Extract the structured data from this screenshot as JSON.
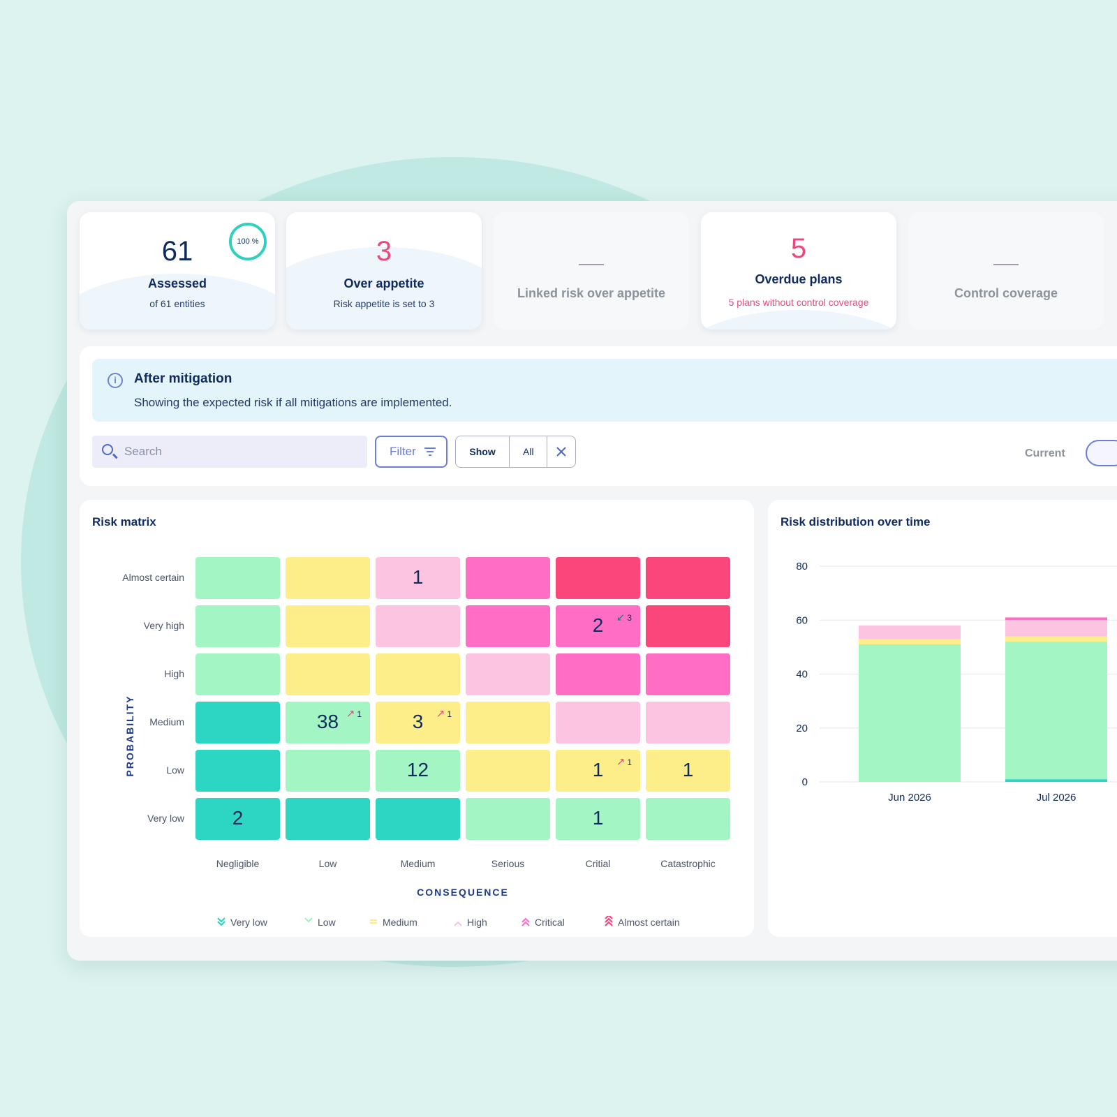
{
  "kpis": {
    "assessed": {
      "number": "61",
      "title": "Assessed",
      "sub": "of 61 entities",
      "ring": "100 %"
    },
    "over_appetite": {
      "number": "3",
      "title": "Over appetite",
      "sub": "Risk appetite is set to 3"
    },
    "linked": {
      "title": "Linked risk over appetite"
    },
    "overdue": {
      "number": "5",
      "title": "Overdue plans",
      "sub": "5 plans without control coverage"
    },
    "control": {
      "title": "Control coverage"
    }
  },
  "banner": {
    "title": "After mitigation",
    "text": "Showing the expected risk if all mitigations are implemented."
  },
  "toolbar": {
    "search_placeholder": "Search",
    "filter_label": "Filter",
    "show_label": "Show",
    "all_label": "All",
    "current_label": "Current"
  },
  "matrix": {
    "title": "Risk matrix",
    "probability_label": "PROBABILITY",
    "consequence_label": "CONSEQUENCE",
    "rows": [
      "Almost certain",
      "Very high",
      "High",
      "Medium",
      "Low",
      "Very low"
    ],
    "columns": [
      "Negligible",
      "Low",
      "Medium",
      "Serious",
      "Critial",
      "Catastrophic"
    ],
    "cells": [
      [
        {
          "level": "low"
        },
        {
          "level": "medium"
        },
        {
          "level": "high",
          "value": "1"
        },
        {
          "level": "critical"
        },
        {
          "level": "almost"
        },
        {
          "level": "almost"
        }
      ],
      [
        {
          "level": "low"
        },
        {
          "level": "medium"
        },
        {
          "level": "high"
        },
        {
          "level": "critical"
        },
        {
          "level": "critical",
          "value": "2",
          "trend": "↙",
          "trend_count": "3",
          "trend_dir": "down"
        },
        {
          "level": "almost"
        }
      ],
      [
        {
          "level": "low"
        },
        {
          "level": "medium"
        },
        {
          "level": "medium"
        },
        {
          "level": "high"
        },
        {
          "level": "critical"
        },
        {
          "level": "critical"
        }
      ],
      [
        {
          "level": "verylow"
        },
        {
          "level": "low",
          "value": "38",
          "trend": "↗",
          "trend_count": "1",
          "trend_dir": "up"
        },
        {
          "level": "medium",
          "value": "3",
          "trend": "↗",
          "trend_count": "1",
          "trend_dir": "up"
        },
        {
          "level": "medium"
        },
        {
          "level": "high"
        },
        {
          "level": "high"
        }
      ],
      [
        {
          "level": "verylow"
        },
        {
          "level": "low"
        },
        {
          "level": "low",
          "value": "12"
        },
        {
          "level": "medium"
        },
        {
          "level": "medium",
          "value": "1",
          "trend": "↗",
          "trend_count": "1",
          "trend_dir": "up"
        },
        {
          "level": "medium",
          "value": "1"
        }
      ],
      [
        {
          "level": "verylow",
          "value": "2"
        },
        {
          "level": "verylow"
        },
        {
          "level": "verylow"
        },
        {
          "level": "low"
        },
        {
          "level": "low",
          "value": "1"
        },
        {
          "level": "low"
        }
      ]
    ],
    "legend": [
      "Very low",
      "Low",
      "Medium",
      "High",
      "Critical",
      "Almost certain"
    ]
  },
  "colors": {
    "verylow": "#2dd6c3",
    "low": "#a3f5c3",
    "medium": "#fdee8a",
    "high": "#fdc4e2",
    "critical": "#ff6ec4",
    "almost": "#fb467b"
  },
  "distribution": {
    "title": "Risk distribution over time"
  },
  "chart_data": {
    "type": "bar",
    "stacked": true,
    "categories": [
      "Jun 2026",
      "Jul 2026"
    ],
    "ylim": [
      0,
      80
    ],
    "yticks": [
      0,
      20,
      40,
      60,
      80
    ],
    "grid": true,
    "series": [
      {
        "key": "verylow",
        "values": [
          0,
          1
        ]
      },
      {
        "key": "low",
        "values": [
          51,
          51
        ]
      },
      {
        "key": "medium",
        "values": [
          2,
          2
        ]
      },
      {
        "key": "high",
        "values": [
          5,
          6
        ]
      },
      {
        "key": "critical",
        "values": [
          0,
          1
        ]
      }
    ]
  }
}
